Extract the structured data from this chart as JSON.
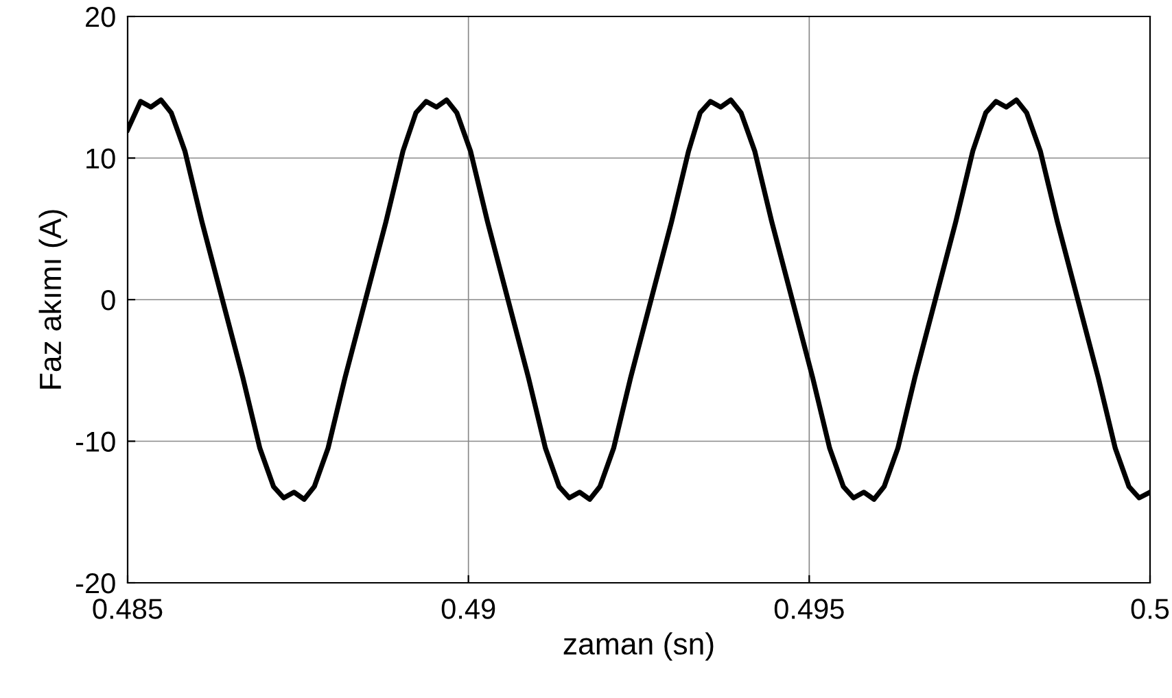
{
  "chart_data": {
    "type": "line",
    "xlabel": "zaman (sn)",
    "ylabel": "Faz akımı (A)",
    "xlim": [
      0.485,
      0.5
    ],
    "ylim": [
      -20,
      20
    ],
    "xticks": [
      0.485,
      0.49,
      0.495,
      0.5
    ],
    "yticks": [
      -20,
      -10,
      0,
      10,
      20
    ],
    "grid": true,
    "marker": "none",
    "line_style": "solid",
    "series": [
      {
        "color": "#000000",
        "x": [
          0.485,
          0.48519,
          0.48534,
          0.48549,
          0.48564,
          0.48584,
          0.48609,
          0.48639,
          0.48669,
          0.48694,
          0.48714,
          0.48729,
          0.48744,
          0.48759,
          0.48774,
          0.48794,
          0.48819,
          0.48849,
          0.48879,
          0.48904,
          0.48923,
          0.48938,
          0.48953,
          0.48968,
          0.48983,
          0.49003,
          0.49028,
          0.49058,
          0.49088,
          0.49113,
          0.49133,
          0.49148,
          0.49163,
          0.49178,
          0.49193,
          0.49213,
          0.49238,
          0.49268,
          0.49298,
          0.49323,
          0.4934,
          0.49355,
          0.4937,
          0.49385,
          0.494,
          0.4942,
          0.49445,
          0.49475,
          0.49505,
          0.4953,
          0.4955,
          0.49565,
          0.4958,
          0.49595,
          0.4961,
          0.4963,
          0.49655,
          0.49685,
          0.49715,
          0.4974,
          0.49759,
          0.49774,
          0.49789,
          0.49804,
          0.49819,
          0.49839,
          0.49864,
          0.49894,
          0.49924,
          0.49949,
          0.49969,
          0.49984,
          0.5
        ],
        "values": [
          12.0,
          14.0,
          13.6,
          14.1,
          13.2,
          10.5,
          5.5,
          0,
          -5.5,
          -10.5,
          -13.2,
          -14.0,
          -13.6,
          -14.1,
          -13.2,
          -10.5,
          -5.5,
          0,
          5.5,
          10.5,
          13.2,
          14.0,
          13.6,
          14.1,
          13.2,
          10.5,
          5.5,
          0,
          -5.5,
          -10.5,
          -13.2,
          -14.0,
          -13.6,
          -14.1,
          -13.2,
          -10.5,
          -5.5,
          0,
          5.5,
          10.5,
          13.2,
          14.0,
          13.6,
          14.1,
          13.2,
          10.5,
          5.5,
          0,
          -5.5,
          -10.5,
          -13.2,
          -14.0,
          -13.6,
          -14.1,
          -13.2,
          -10.5,
          -5.5,
          0,
          5.5,
          10.5,
          13.2,
          14.0,
          13.6,
          14.1,
          13.2,
          10.5,
          5.5,
          0,
          -5.5,
          -10.5,
          -13.2,
          -14.0,
          -13.6
        ]
      }
    ]
  }
}
